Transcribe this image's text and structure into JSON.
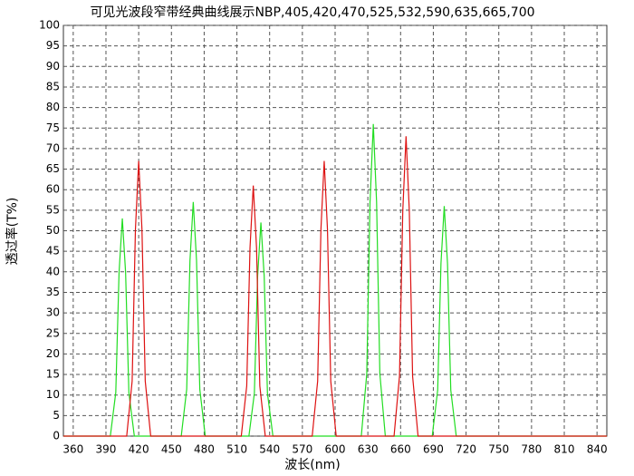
{
  "chart_data": {
    "type": "line",
    "title": "可见光波段窄带经典曲线展示NBP,405,420,470,525,532,590,635,665,700",
    "x_label": "波长(nm)",
    "y_label": "透过率(T%)",
    "xlim": [
      351,
      849
    ],
    "ylim": [
      0,
      100
    ],
    "xticks": [
      360,
      390,
      420,
      450,
      480,
      510,
      540,
      570,
      600,
      630,
      660,
      690,
      720,
      750,
      780,
      810,
      840
    ],
    "yticks": [
      0,
      5,
      10,
      15,
      20,
      25,
      30,
      35,
      40,
      45,
      50,
      55,
      60,
      65,
      70,
      75,
      80,
      85,
      90,
      95,
      100
    ],
    "grid": true,
    "series": [
      {
        "color": "#22dd22",
        "x": [
          351,
          394,
          399,
          402,
          405,
          408,
          411,
          416,
          459,
          464,
          467,
          470,
          473,
          476,
          481,
          521,
          526,
          529,
          532,
          535,
          538,
          543,
          624,
          629,
          632,
          635,
          638,
          641,
          646,
          689,
          694,
          697,
          700,
          703,
          706,
          711,
          849
        ],
        "values": [
          0,
          0,
          10.6,
          39.8,
          53,
          39.8,
          10.6,
          0,
          0,
          11.4,
          42.8,
          57,
          42.8,
          11.4,
          0,
          0,
          10.4,
          39,
          52,
          39,
          10.4,
          0,
          0,
          15.2,
          57,
          76,
          57,
          15.2,
          0,
          0,
          11.2,
          42,
          56,
          42,
          11.2,
          0,
          0
        ]
      },
      {
        "color": "#dd1111",
        "x": [
          351,
          409,
          414,
          417,
          420,
          423,
          426,
          431,
          514,
          519,
          522,
          525,
          528,
          531,
          536,
          579,
          584,
          587,
          590,
          593,
          596,
          601,
          654,
          659,
          662,
          665,
          668,
          671,
          676,
          849
        ],
        "values": [
          0,
          0,
          13.4,
          50.3,
          67,
          50.3,
          13.4,
          0,
          0,
          12.2,
          45.8,
          61,
          45.8,
          12.2,
          0,
          0,
          13.4,
          50.3,
          67,
          50.3,
          13.4,
          0,
          0,
          14.6,
          54.8,
          73,
          54.8,
          14.6,
          0,
          0
        ]
      }
    ]
  }
}
